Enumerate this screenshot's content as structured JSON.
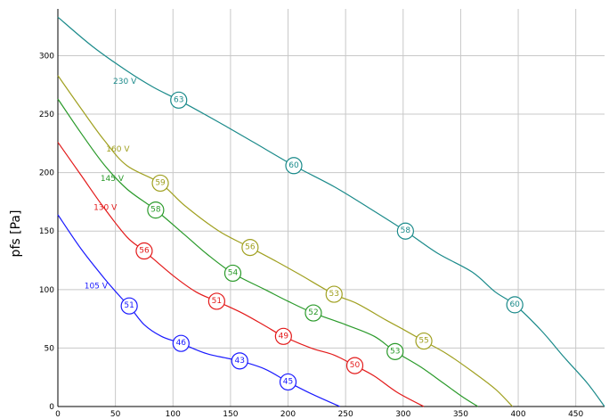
{
  "chart_data": {
    "type": "line",
    "title": "",
    "xlabel": "",
    "ylabel": "pfs [Pa]",
    "xlim": [
      0,
      475
    ],
    "ylim": [
      0,
      340
    ],
    "x_ticks": [
      0,
      50,
      100,
      150,
      200,
      250,
      300,
      350,
      400,
      450
    ],
    "y_ticks": [
      0,
      50,
      100,
      150,
      200,
      250,
      300
    ],
    "grid": true,
    "series": [
      {
        "name": "105 V",
        "color": "#1a1aff",
        "label_pos": [
          23,
          101
        ],
        "points": [
          [
            0,
            164
          ],
          [
            20,
            135
          ],
          [
            40,
            110
          ],
          [
            55,
            93
          ],
          [
            62,
            86
          ],
          [
            75,
            70
          ],
          [
            90,
            60
          ],
          [
            107,
            54
          ],
          [
            130,
            45
          ],
          [
            158,
            39
          ],
          [
            180,
            32
          ],
          [
            200,
            21
          ],
          [
            220,
            11
          ],
          [
            245,
            0
          ]
        ],
        "markers": [
          {
            "x": 62,
            "y": 86,
            "label": "51"
          },
          {
            "x": 107,
            "y": 54,
            "label": "46"
          },
          {
            "x": 158,
            "y": 39,
            "label": "43"
          },
          {
            "x": 200,
            "y": 21,
            "label": "45"
          }
        ]
      },
      {
        "name": "130 V",
        "color": "#e31a1a",
        "label_pos": [
          31,
          168
        ],
        "points": [
          [
            0,
            226
          ],
          [
            20,
            198
          ],
          [
            40,
            170
          ],
          [
            60,
            145
          ],
          [
            75,
            133
          ],
          [
            100,
            112
          ],
          [
            120,
            98
          ],
          [
            138,
            90
          ],
          [
            160,
            80
          ],
          [
            180,
            69
          ],
          [
            196,
            60
          ],
          [
            220,
            50
          ],
          [
            240,
            44
          ],
          [
            258,
            35
          ],
          [
            275,
            26
          ],
          [
            295,
            12
          ],
          [
            318,
            0
          ]
        ],
        "markers": [
          {
            "x": 75,
            "y": 133,
            "label": "56"
          },
          {
            "x": 138,
            "y": 90,
            "label": "51"
          },
          {
            "x": 196,
            "y": 60,
            "label": "49"
          },
          {
            "x": 258,
            "y": 35,
            "label": "50"
          }
        ]
      },
      {
        "name": "145 V",
        "color": "#2a9a2a",
        "label_pos": [
          37,
          193
        ],
        "points": [
          [
            0,
            263
          ],
          [
            20,
            234
          ],
          [
            40,
            207
          ],
          [
            60,
            186
          ],
          [
            85,
            168
          ],
          [
            110,
            147
          ],
          [
            130,
            130
          ],
          [
            152,
            114
          ],
          [
            180,
            100
          ],
          [
            200,
            90
          ],
          [
            222,
            80
          ],
          [
            250,
            70
          ],
          [
            275,
            60
          ],
          [
            293,
            47
          ],
          [
            315,
            34
          ],
          [
            335,
            20
          ],
          [
            352,
            8
          ],
          [
            365,
            0
          ]
        ],
        "markers": [
          {
            "x": 85,
            "y": 168,
            "label": "58"
          },
          {
            "x": 152,
            "y": 114,
            "label": "54"
          },
          {
            "x": 222,
            "y": 80,
            "label": "52"
          },
          {
            "x": 293,
            "y": 47,
            "label": "53"
          }
        ]
      },
      {
        "name": "160 V",
        "color": "#a0a020",
        "label_pos": [
          42,
          218
        ],
        "points": [
          [
            0,
            283
          ],
          [
            20,
            255
          ],
          [
            40,
            228
          ],
          [
            60,
            206
          ],
          [
            89,
            191
          ],
          [
            110,
            172
          ],
          [
            140,
            150
          ],
          [
            167,
            136
          ],
          [
            190,
            124
          ],
          [
            210,
            113
          ],
          [
            240,
            96
          ],
          [
            260,
            88
          ],
          [
            285,
            74
          ],
          [
            300,
            66
          ],
          [
            318,
            56
          ],
          [
            338,
            45
          ],
          [
            360,
            30
          ],
          [
            380,
            15
          ],
          [
            395,
            0
          ]
        ],
        "markers": [
          {
            "x": 89,
            "y": 191,
            "label": "59"
          },
          {
            "x": 167,
            "y": 136,
            "label": "56"
          },
          {
            "x": 240,
            "y": 96,
            "label": "53"
          },
          {
            "x": 318,
            "y": 56,
            "label": "55"
          }
        ]
      },
      {
        "name": "230 V",
        "color": "#1a8a8a",
        "label_pos": [
          48,
          276
        ],
        "points": [
          [
            0,
            333
          ],
          [
            30,
            308
          ],
          [
            60,
            287
          ],
          [
            83,
            273
          ],
          [
            105,
            262
          ],
          [
            140,
            243
          ],
          [
            170,
            226
          ],
          [
            205,
            206
          ],
          [
            240,
            188
          ],
          [
            270,
            170
          ],
          [
            302,
            150
          ],
          [
            330,
            131
          ],
          [
            360,
            115
          ],
          [
            380,
            98
          ],
          [
            397,
            87
          ],
          [
            420,
            65
          ],
          [
            440,
            42
          ],
          [
            460,
            20
          ],
          [
            475,
            0
          ]
        ],
        "markers": [
          {
            "x": 105,
            "y": 262,
            "label": "63"
          },
          {
            "x": 205,
            "y": 206,
            "label": "60"
          },
          {
            "x": 302,
            "y": 150,
            "label": "58"
          },
          {
            "x": 397,
            "y": 87,
            "label": "60"
          }
        ]
      }
    ]
  }
}
